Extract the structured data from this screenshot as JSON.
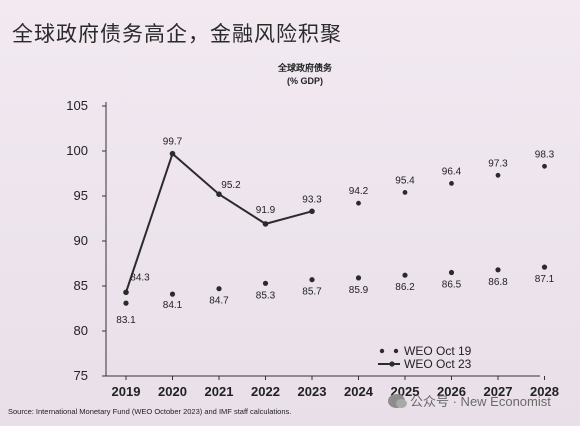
{
  "slide": {
    "title": "全球政府债务高企，金融风险积聚",
    "source": "Source: International Monetary Fund (WEO October 2023) and IMF staff calculations.",
    "watermark": "公众号 · New Economist"
  },
  "chart_data": {
    "type": "line",
    "title": "全球政府债务",
    "subtitle": "(% GDP)",
    "x": [
      2019,
      2020,
      2021,
      2022,
      2023,
      2024,
      2025,
      2026,
      2027,
      2028
    ],
    "ylim": [
      75,
      105
    ],
    "yticks": [
      75,
      80,
      85,
      90,
      95,
      100,
      105
    ],
    "grid": false,
    "legend_position": "bottom-right",
    "series": [
      {
        "name": "WEO Oct 19",
        "style": "dots",
        "values": [
          83.1,
          84.1,
          84.7,
          85.3,
          85.7,
          85.9,
          86.2,
          86.5,
          86.8,
          87.1
        ],
        "labels": [
          "83.1",
          "84.1",
          "84.7",
          "85.3",
          "85.7",
          "85.9",
          "86.2",
          "86.5",
          "86.8",
          "87.1"
        ]
      },
      {
        "name": "WEO Oct 23",
        "style": "line-then-dots",
        "solid_until": 2023,
        "values": [
          84.3,
          99.7,
          95.2,
          91.9,
          93.3,
          94.2,
          95.4,
          96.4,
          97.3,
          98.3
        ],
        "labels": [
          "84.3",
          "99.7",
          "95.2",
          "91.9",
          "93.3",
          "94.2",
          "95.4",
          "96.4",
          "97.3",
          "98.3"
        ]
      }
    ],
    "colors": {
      "line": "#2b2b2b",
      "text": "#222222",
      "axis": "#333333"
    }
  }
}
